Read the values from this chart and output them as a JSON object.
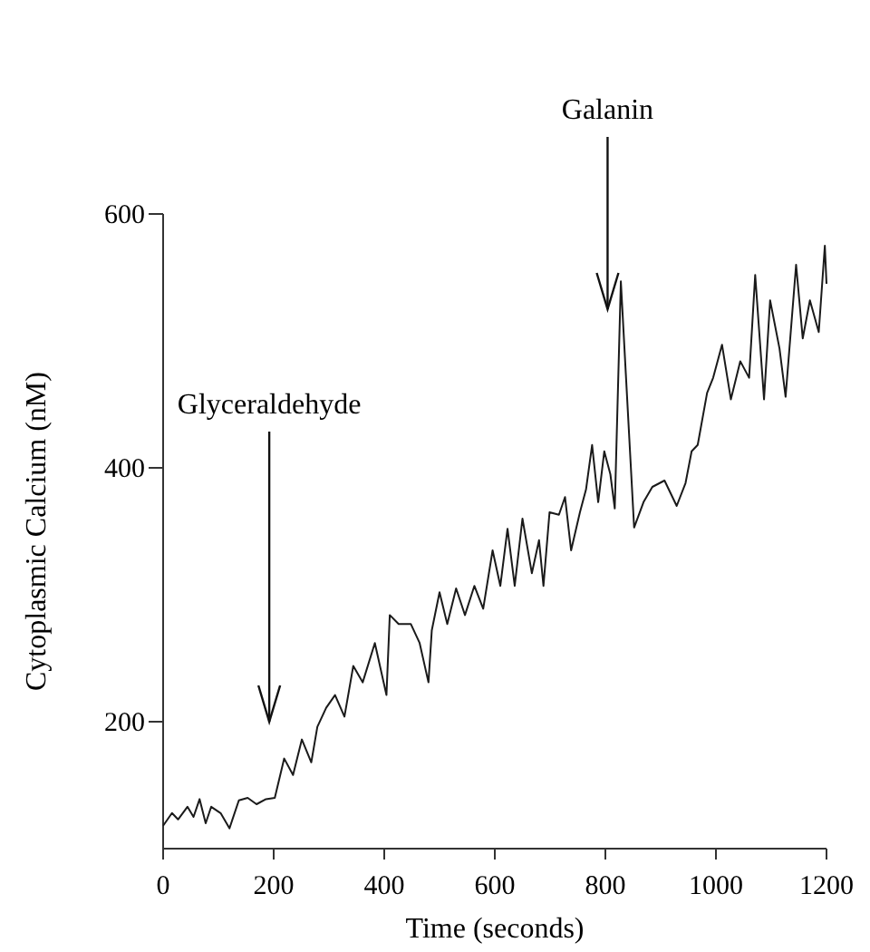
{
  "chart_data": {
    "type": "line",
    "xlabel": "Time (seconds)",
    "ylabel": "Cytoplasmic Calcium (nM)",
    "xlim": [
      0,
      1200
    ],
    "ylim": [
      100,
      600
    ],
    "xticks": [
      0,
      200,
      400,
      600,
      800,
      1000,
      1200
    ],
    "yticks": [
      200,
      400,
      600
    ],
    "grid": false,
    "marker": "none",
    "line_style": "solid",
    "series": [
      {
        "color": "#1a1a1a",
        "x": [
          0,
          16,
          27,
          44,
          55,
          66,
          77,
          87,
          104,
          120,
          137,
          153,
          169,
          186,
          202,
          219,
          235,
          251,
          268,
          279,
          295,
          311,
          328,
          344,
          361,
          383,
          404,
          410,
          426,
          448,
          464,
          480,
          486,
          500,
          514,
          530,
          546,
          563,
          579,
          596,
          610,
          623,
          636,
          650,
          667,
          680,
          688,
          699,
          716,
          727,
          738,
          754,
          765,
          776,
          787,
          798,
          809,
          817,
          828,
          837,
          852,
          869,
          885,
          907,
          929,
          945,
          956,
          967,
          984,
          995,
          1011,
          1027,
          1044,
          1060,
          1071,
          1087,
          1098,
          1115,
          1126,
          1145,
          1157,
          1170,
          1186,
          1197,
          1200
        ],
        "values": [
          118,
          128,
          123,
          133,
          125,
          139,
          120,
          133,
          128,
          116,
          138,
          140,
          135,
          139,
          140,
          171,
          158,
          186,
          168,
          196,
          211,
          221,
          204,
          244,
          231,
          262,
          221,
          284,
          277,
          277,
          262,
          231,
          272,
          302,
          277,
          305,
          284,
          307,
          289,
          335,
          307,
          352,
          307,
          360,
          317,
          343,
          307,
          365,
          363,
          377,
          335,
          365,
          383,
          418,
          373,
          413,
          395,
          368,
          547,
          474,
          353,
          373,
          385,
          390,
          370,
          388,
          413,
          418,
          459,
          471,
          497,
          454,
          484,
          471,
          552,
          454,
          532,
          494,
          456,
          560,
          502,
          532,
          507,
          575,
          545
        ]
      }
    ],
    "annotations": [
      "Glyceraldehyde",
      "Galanin"
    ]
  }
}
